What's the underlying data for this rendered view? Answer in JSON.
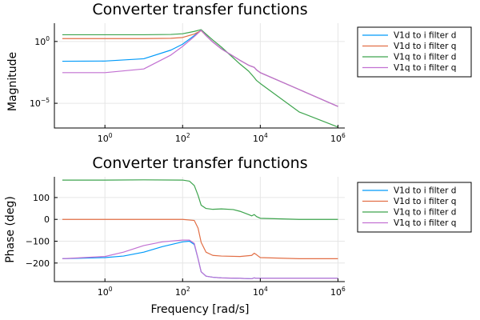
{
  "colors": [
    "#009af9",
    "#e26f46",
    "#3da44d",
    "#c271d2"
  ],
  "chart_data": [
    {
      "type": "line",
      "title": "Converter transfer functions",
      "xlabel": "",
      "ylabel": "Magnitude",
      "xscale": "log",
      "yscale": "log",
      "xlim": [
        0.05,
        1500000.0
      ],
      "ylim": [
        1e-07,
        30
      ],
      "xticks": [
        {
          "base": "10",
          "exp": "0",
          "value": 1
        },
        {
          "base": "10",
          "exp": "2",
          "value": 100
        },
        {
          "base": "10",
          "exp": "4",
          "value": 10000
        },
        {
          "base": "10",
          "exp": "6",
          "value": 1000000
        }
      ],
      "yticks": [
        {
          "base": "10",
          "exp": "0",
          "value": 1
        },
        {
          "base": "10",
          "exp": "−5",
          "value": 1e-05
        }
      ],
      "grid": true,
      "legend_position": "outer-right",
      "series": [
        {
          "name": "V1d to i filter d",
          "color": "#009af9",
          "x": [
            0.08,
            1,
            10,
            50,
            100,
            200,
            300,
            400,
            600,
            1000,
            3000,
            5000,
            7000,
            8000,
            10000,
            100000,
            1000000
          ],
          "y": [
            0.025,
            0.026,
            0.04,
            0.2,
            0.6,
            3,
            8,
            3,
            0.9,
            0.25,
            0.03,
            0.012,
            0.008,
            0.005,
            0.003,
            0.00013,
            5.5e-06
          ]
        },
        {
          "name": "V1d to i filter q",
          "color": "#e26f46",
          "x": [
            0.08,
            1,
            10,
            50,
            100,
            200,
            300,
            400,
            600,
            1000,
            3000,
            5000,
            7000,
            8000,
            10000,
            100000,
            1000000
          ],
          "y": [
            1.7,
            1.7,
            1.7,
            1.8,
            2.1,
            4,
            7.5,
            3,
            0.9,
            0.25,
            0.03,
            0.012,
            0.008,
            0.005,
            0.003,
            0.00013,
            5.5e-06
          ]
        },
        {
          "name": "V1q to i filter d",
          "color": "#3da44d",
          "x": [
            0.08,
            1,
            10,
            50,
            100,
            200,
            300,
            400,
            600,
            1000,
            3000,
            5000,
            7000,
            8000,
            10000,
            100000,
            1000000
          ],
          "y": [
            3.5,
            3.5,
            3.5,
            3.7,
            4.2,
            6.5,
            9,
            4,
            1.3,
            0.35,
            0.015,
            0.004,
            0.0012,
            0.0007,
            0.0004,
            2e-06,
            1.2e-07
          ]
        },
        {
          "name": "V1q to i filter q",
          "color": "#c271d2",
          "x": [
            0.08,
            1,
            10,
            50,
            100,
            200,
            300,
            400,
            600,
            1000,
            3000,
            5000,
            7000,
            8000,
            10000,
            100000,
            1000000
          ],
          "y": [
            0.003,
            0.003,
            0.006,
            0.08,
            0.4,
            2.5,
            8,
            3,
            0.9,
            0.25,
            0.03,
            0.012,
            0.008,
            0.005,
            0.003,
            0.00013,
            5.5e-06
          ]
        }
      ]
    },
    {
      "type": "line",
      "title": "Converter transfer functions",
      "xlabel": "Frequency [rad/s]",
      "ylabel": "Phase (deg)",
      "xscale": "log",
      "yscale": "linear",
      "xlim": [
        0.05,
        1500000.0
      ],
      "ylim": [
        -285,
        195
      ],
      "xticks": [
        {
          "base": "10",
          "exp": "0",
          "value": 1
        },
        {
          "base": "10",
          "exp": "2",
          "value": 100
        },
        {
          "base": "10",
          "exp": "4",
          "value": 10000
        },
        {
          "base": "10",
          "exp": "6",
          "value": 1000000
        }
      ],
      "yticks": [
        {
          "label": "100",
          "value": 100
        },
        {
          "label": "0",
          "value": 0
        },
        {
          "label": "−100",
          "value": -100
        },
        {
          "label": "−200",
          "value": -200
        }
      ],
      "grid": true,
      "legend_position": "outer-right",
      "series": [
        {
          "name": "V1d to i filter d",
          "color": "#009af9",
          "x": [
            0.08,
            1,
            3,
            10,
            30,
            100,
            150,
            200,
            250,
            300,
            400,
            600,
            1000,
            3000,
            6000,
            7000,
            8000,
            10000,
            100000,
            1000000
          ],
          "y": [
            -180,
            -175,
            -168,
            -150,
            -125,
            -103,
            -100,
            -115,
            -180,
            -240,
            -260,
            -265,
            -268,
            -270,
            -272,
            -268,
            -270,
            -270,
            -270,
            -270
          ]
        },
        {
          "name": "V1d to i filter q",
          "color": "#e26f46",
          "x": [
            0.08,
            1,
            10,
            100,
            200,
            250,
            300,
            400,
            600,
            1000,
            3000,
            6000,
            7000,
            8000,
            10000,
            100000,
            1000000
          ],
          "y": [
            0,
            0,
            0,
            0,
            -5,
            -40,
            -105,
            -150,
            -165,
            -168,
            -170,
            -165,
            -155,
            -162,
            -175,
            -180,
            -180
          ]
        },
        {
          "name": "V1q to i filter d",
          "color": "#3da44d",
          "x": [
            0.08,
            1,
            10,
            100,
            150,
            200,
            250,
            300,
            400,
            600,
            1000,
            2000,
            3000,
            5000,
            6000,
            7000,
            8000,
            10000,
            100000,
            1000000
          ],
          "y": [
            180,
            180,
            181,
            180,
            175,
            155,
            110,
            65,
            50,
            46,
            48,
            45,
            37,
            22,
            16,
            22,
            13,
            5,
            0,
            0
          ]
        },
        {
          "name": "V1q to i filter q",
          "color": "#c271d2",
          "x": [
            0.08,
            1,
            3,
            10,
            30,
            100,
            150,
            200,
            250,
            300,
            400,
            600,
            1000,
            3000,
            6000,
            7000,
            8000,
            10000,
            100000,
            1000000
          ],
          "y": [
            -180,
            -170,
            -150,
            -120,
            -103,
            -95,
            -95,
            -110,
            -180,
            -240,
            -260,
            -265,
            -268,
            -270,
            -272,
            -268,
            -270,
            -270,
            -270,
            -270
          ]
        }
      ]
    }
  ]
}
